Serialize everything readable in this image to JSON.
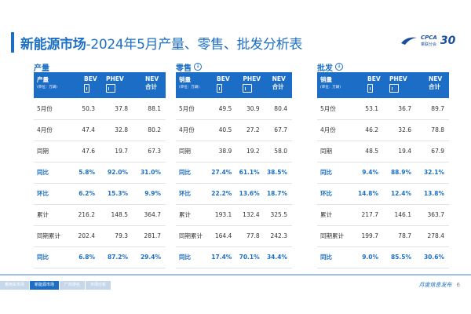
{
  "header": {
    "title_bold": "新能源市场",
    "title_rest": "-2024年5月产量、零售、批发分析表"
  },
  "logo": {
    "brand": "CPCA",
    "sub": "乘联分会",
    "anniversary": "30"
  },
  "columns": {
    "label_production": "产量",
    "label_sales": "销量",
    "unit": "(单位：万辆)",
    "bev": "BEV",
    "phev": "PHEV",
    "nev_line1": "NEV",
    "nev_line2": "合计"
  },
  "panels": [
    {
      "title": "产量",
      "header_label": "产量",
      "rows": [
        {
          "label": "5月份",
          "bev": "50.3",
          "phev": "37.8",
          "nev": "88.1",
          "hl": false
        },
        {
          "label": "4月份",
          "bev": "47.4",
          "phev": "32.8",
          "nev": "80.2",
          "hl": false
        },
        {
          "label": "同期",
          "bev": "47.6",
          "phev": "19.7",
          "nev": "67.3",
          "hl": false
        },
        {
          "label": "同比",
          "bev": "5.8%",
          "phev": "92.0%",
          "nev": "31.0%",
          "hl": true
        },
        {
          "label": "环比",
          "bev": "6.2%",
          "phev": "15.3%",
          "nev": "9.9%",
          "hl": true
        },
        {
          "label": "累计",
          "bev": "216.2",
          "phev": "148.5",
          "nev": "364.7",
          "hl": false
        },
        {
          "label": "同期累计",
          "bev": "202.4",
          "phev": "79.3",
          "nev": "281.7",
          "hl": false
        },
        {
          "label": "同比",
          "bev": "6.8%",
          "phev": "87.2%",
          "nev": "29.4%",
          "hl": true
        }
      ]
    },
    {
      "title": "零售",
      "header_label": "销量",
      "rows": [
        {
          "label": "5月份",
          "bev": "49.5",
          "phev": "30.9",
          "nev": "80.4",
          "hl": false
        },
        {
          "label": "4月份",
          "bev": "40.5",
          "phev": "27.2",
          "nev": "67.7",
          "hl": false
        },
        {
          "label": "同期",
          "bev": "38.9",
          "phev": "19.2",
          "nev": "58.0",
          "hl": false
        },
        {
          "label": "同比",
          "bev": "27.4%",
          "phev": "61.1%",
          "nev": "38.5%",
          "hl": true
        },
        {
          "label": "环比",
          "bev": "22.2%",
          "phev": "13.6%",
          "nev": "18.7%",
          "hl": true
        },
        {
          "label": "累计",
          "bev": "193.1",
          "phev": "132.4",
          "nev": "325.5",
          "hl": false
        },
        {
          "label": "同期累计",
          "bev": "164.4",
          "phev": "77.8",
          "nev": "242.3",
          "hl": false
        },
        {
          "label": "同比",
          "bev": "17.4%",
          "phev": "70.1%",
          "nev": "34.4%",
          "hl": true
        }
      ]
    },
    {
      "title": "批发",
      "header_label": "销量",
      "rows": [
        {
          "label": "5月份",
          "bev": "53.1",
          "phev": "36.7",
          "nev": "89.7",
          "hl": false
        },
        {
          "label": "4月份",
          "bev": "46.2",
          "phev": "32.6",
          "nev": "78.8",
          "hl": false
        },
        {
          "label": "同期",
          "bev": "48.5",
          "phev": "19.4",
          "nev": "67.9",
          "hl": false
        },
        {
          "label": "同比",
          "bev": "9.4%",
          "phev": "88.9%",
          "nev": "32.1%",
          "hl": true
        },
        {
          "label": "环比",
          "bev": "14.8%",
          "phev": "12.4%",
          "nev": "13.8%",
          "hl": true
        },
        {
          "label": "累计",
          "bev": "217.7",
          "phev": "146.1",
          "nev": "363.7",
          "hl": false
        },
        {
          "label": "同期累计",
          "bev": "199.7",
          "phev": "78.7",
          "nev": "278.4",
          "hl": false
        },
        {
          "label": "同比",
          "bev": "9.0%",
          "phev": "85.5%",
          "nev": "30.6%",
          "hl": true
        }
      ]
    }
  ],
  "footer": {
    "tabs": [
      "乘用车市场",
      "新能源市场",
      "厂商排名",
      "市场分析"
    ],
    "active_tab": 1,
    "publisher": "月度信息发布",
    "page_number": "6"
  }
}
